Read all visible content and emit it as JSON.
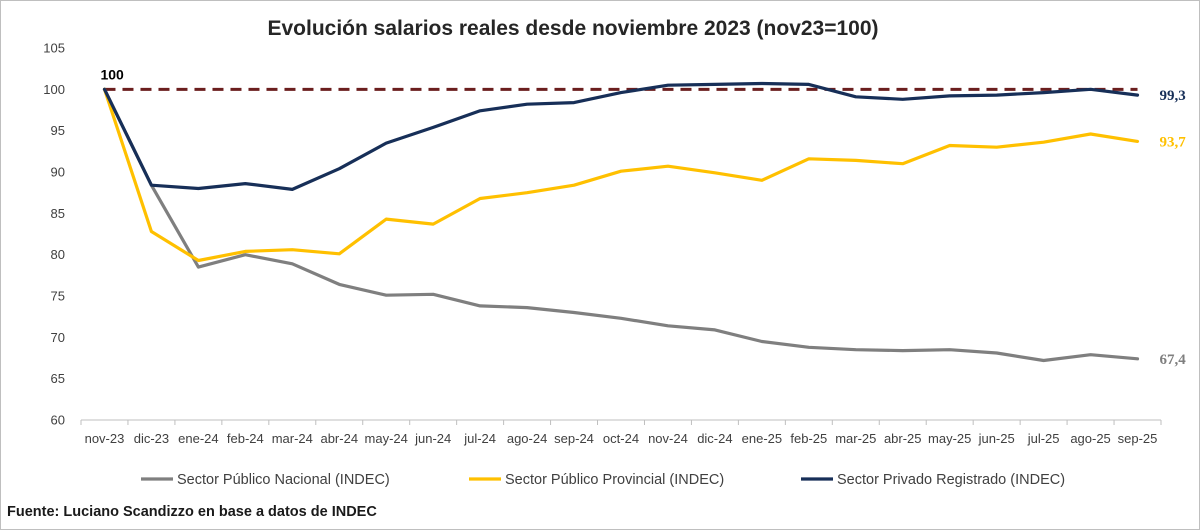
{
  "chart_data": {
    "type": "line",
    "title": "Evolución salarios  reales desde noviembre 2023 (nov23=100)",
    "source": "Fuente: Luciano Scandizzo en base a datos de INDEC",
    "categories": [
      "nov-23",
      "dic-23",
      "ene-24",
      "feb-24",
      "mar-24",
      "abr-24",
      "may-24",
      "jun-24",
      "jul-24",
      "ago-24",
      "sep-24",
      "oct-24",
      "nov-24",
      "dic-24",
      "ene-25",
      "feb-25",
      "mar-25",
      "abr-25",
      "may-25",
      "jun-25",
      "jul-25",
      "ago-25",
      "sep-25"
    ],
    "ylim": [
      60,
      105
    ],
    "yticks": [
      "60",
      "65",
      "70",
      "75",
      "80",
      "85",
      "90",
      "95",
      "100",
      "105"
    ],
    "grid": false,
    "legend_position": "bottom",
    "reference_line": {
      "value": 100,
      "color": "#6b1e1e",
      "style": "dashed"
    },
    "start_label": "100",
    "series": [
      {
        "name": "Sector Público Nacional (INDEC)",
        "color": "#7f7f7f",
        "end_label": "67,4",
        "values": [
          100,
          88.4,
          78.5,
          80.0,
          78.9,
          76.4,
          75.1,
          75.2,
          73.8,
          73.6,
          73.0,
          72.3,
          71.4,
          70.9,
          69.5,
          68.8,
          68.5,
          68.4,
          68.5,
          68.1,
          67.2,
          67.9,
          67.4
        ]
      },
      {
        "name": "Sector Público Provincial (INDEC)",
        "color": "#ffc000",
        "end_label": "93,7",
        "values": [
          100,
          82.8,
          79.3,
          80.4,
          80.6,
          80.1,
          84.3,
          83.7,
          86.8,
          87.5,
          88.4,
          90.1,
          90.7,
          89.9,
          89.0,
          91.6,
          91.4,
          91.0,
          93.2,
          93.0,
          93.6,
          94.6,
          93.7
        ]
      },
      {
        "name": "Sector Privado Registrado (INDEC)",
        "color": "#172f58",
        "end_label": "99,3",
        "values": [
          100,
          88.4,
          88.0,
          88.6,
          87.9,
          90.4,
          93.5,
          95.4,
          97.4,
          98.2,
          98.4,
          99.6,
          100.5,
          100.6,
          100.7,
          100.6,
          99.1,
          98.8,
          99.2,
          99.3,
          99.6,
          100.0,
          99.3
        ]
      }
    ]
  }
}
